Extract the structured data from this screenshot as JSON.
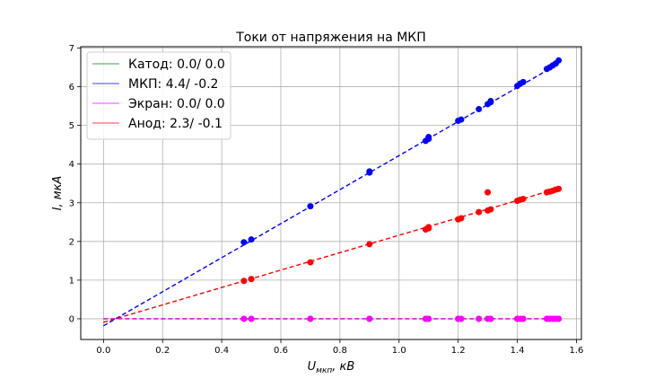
{
  "chart_data": {
    "type": "scatter",
    "title": "Токи от напряжения на МКП",
    "xlabel": "U_мкп, кВ",
    "xlabel_main": "U",
    "xlabel_sub": "мкп",
    "xlabel_rest": ", кВ",
    "ylabel": "I, мкА",
    "xlim": [
      -0.077,
      1.617
    ],
    "ylim": [
      -0.535,
      7.035
    ],
    "xticks": [
      0.0,
      0.2,
      0.4,
      0.6,
      0.8,
      1.0,
      1.2,
      1.4,
      1.6
    ],
    "xtick_labels": [
      "0.0",
      "0.2",
      "0.4",
      "0.6",
      "0.8",
      "1.0",
      "1.2",
      "1.4",
      "1.6"
    ],
    "yticks": [
      0,
      1,
      2,
      3,
      4,
      5,
      6,
      7
    ],
    "ytick_labels": [
      "0",
      "1",
      "2",
      "3",
      "4",
      "5",
      "6",
      "7"
    ],
    "grid": true,
    "legend_position": "top-left",
    "series": [
      {
        "name": "Катод: 0.0/ 0.0",
        "color": "#008000",
        "line_color": "#80c080",
        "fit": {
          "slope": 0.0,
          "intercept": 0.0,
          "x_range": [
            0.0,
            1.54
          ]
        },
        "points": [
          [
            0.475,
            0.0
          ],
          [
            0.5,
            0.0
          ],
          [
            0.7,
            0.0
          ],
          [
            0.9,
            0.0
          ],
          [
            1.09,
            0.0
          ],
          [
            1.1,
            0.0
          ],
          [
            1.2,
            0.0
          ],
          [
            1.21,
            0.0
          ],
          [
            1.27,
            0.0
          ],
          [
            1.3,
            0.0
          ],
          [
            1.31,
            0.0
          ],
          [
            1.4,
            0.0
          ],
          [
            1.41,
            0.0
          ],
          [
            1.42,
            0.0
          ],
          [
            1.5,
            0.0
          ],
          [
            1.51,
            0.0
          ],
          [
            1.52,
            0.0
          ],
          [
            1.53,
            0.0
          ],
          [
            1.54,
            0.0
          ]
        ]
      },
      {
        "name": "МКП: 4.4/ -0.2",
        "color": "#0000ff",
        "line_color": "#8080ff",
        "fit": {
          "slope": 4.4,
          "intercept": -0.18,
          "x_range": [
            0.0,
            1.54
          ]
        },
        "points": [
          [
            0.475,
            1.98
          ],
          [
            0.5,
            2.05
          ],
          [
            0.7,
            2.91
          ],
          [
            0.9,
            3.78
          ],
          [
            0.9,
            3.81
          ],
          [
            1.09,
            4.6
          ],
          [
            1.1,
            4.65
          ],
          [
            1.1,
            4.7
          ],
          [
            1.2,
            5.12
          ],
          [
            1.21,
            5.15
          ],
          [
            1.27,
            5.42
          ],
          [
            1.3,
            5.55
          ],
          [
            1.31,
            5.6
          ],
          [
            1.31,
            5.63
          ],
          [
            1.4,
            6.02
          ],
          [
            1.41,
            6.08
          ],
          [
            1.42,
            6.12
          ],
          [
            1.5,
            6.46
          ],
          [
            1.51,
            6.5
          ],
          [
            1.52,
            6.55
          ],
          [
            1.53,
            6.6
          ],
          [
            1.54,
            6.68
          ]
        ]
      },
      {
        "name": "Экран: 0.0/ 0.0",
        "color": "#ff00ff",
        "line_color": "#ff80ff",
        "fit": {
          "slope": 0.0,
          "intercept": 0.0,
          "x_range": [
            0.0,
            1.54
          ]
        },
        "points": [
          [
            0.475,
            0.0
          ],
          [
            0.5,
            0.0
          ],
          [
            0.7,
            0.0
          ],
          [
            0.9,
            0.0
          ],
          [
            1.09,
            0.0
          ],
          [
            1.1,
            0.0
          ],
          [
            1.2,
            0.0
          ],
          [
            1.21,
            0.0
          ],
          [
            1.27,
            0.0
          ],
          [
            1.3,
            0.0
          ],
          [
            1.31,
            0.0
          ],
          [
            1.4,
            0.0
          ],
          [
            1.41,
            0.0
          ],
          [
            1.42,
            0.0
          ],
          [
            1.5,
            0.0
          ],
          [
            1.51,
            0.0
          ],
          [
            1.52,
            0.0
          ],
          [
            1.53,
            0.0
          ],
          [
            1.54,
            0.0
          ]
        ]
      },
      {
        "name": "Анод: 2.3/ -0.1",
        "color": "#ff0000",
        "line_color": "#ff8080",
        "fit": {
          "slope": 2.25,
          "intercept": -0.09,
          "x_range": [
            0.0,
            1.54
          ]
        },
        "points": [
          [
            0.475,
            0.98
          ],
          [
            0.5,
            1.03
          ],
          [
            0.7,
            1.46
          ],
          [
            0.9,
            1.93
          ],
          [
            1.09,
            2.31
          ],
          [
            1.1,
            2.34
          ],
          [
            1.1,
            2.37
          ],
          [
            1.2,
            2.57
          ],
          [
            1.21,
            2.6
          ],
          [
            1.27,
            2.76
          ],
          [
            1.3,
            3.27
          ],
          [
            1.3,
            2.8
          ],
          [
            1.31,
            2.83
          ],
          [
            1.4,
            3.05
          ],
          [
            1.41,
            3.08
          ],
          [
            1.42,
            3.1
          ],
          [
            1.5,
            3.27
          ],
          [
            1.51,
            3.29
          ],
          [
            1.52,
            3.31
          ],
          [
            1.53,
            3.34
          ],
          [
            1.54,
            3.36
          ]
        ]
      }
    ]
  }
}
